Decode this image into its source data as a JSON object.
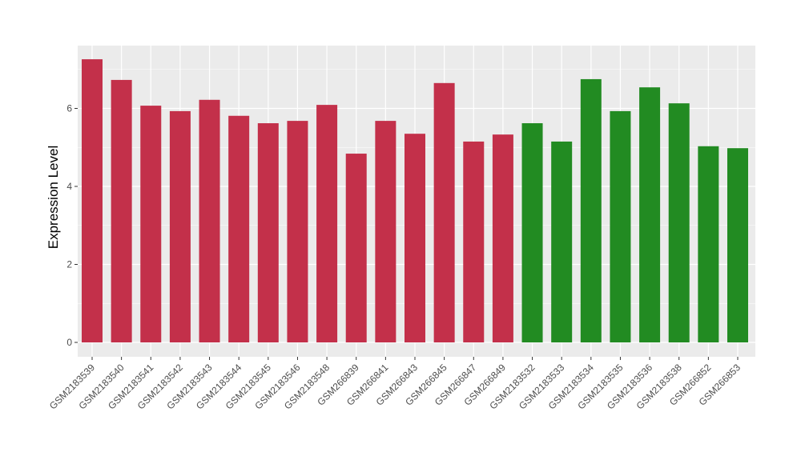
{
  "chart_data": {
    "type": "bar",
    "title": "",
    "xlabel": "",
    "ylabel": "Expression Level",
    "ylim": [
      -0.3,
      7.7
    ],
    "yticks": [
      0,
      2,
      4,
      6
    ],
    "grid": true,
    "categories": [
      "GSM2183539",
      "GSM2183540",
      "GSM2183541",
      "GSM2183542",
      "GSM2183543",
      "GSM2183544",
      "GSM2183545",
      "GSM2183546",
      "GSM2183548",
      "GSM266839",
      "GSM266841",
      "GSM266843",
      "GSM266845",
      "GSM266847",
      "GSM266849",
      "GSM2183532",
      "GSM2183533",
      "GSM2183534",
      "GSM2183535",
      "GSM2183536",
      "GSM2183538",
      "GSM266852",
      "GSM266853"
    ],
    "values": [
      7.26,
      6.73,
      6.07,
      5.93,
      6.22,
      5.81,
      5.62,
      5.68,
      6.09,
      4.84,
      5.68,
      5.35,
      6.65,
      5.15,
      5.33,
      5.62,
      5.15,
      6.75,
      5.93,
      6.54,
      6.13,
      5.03,
      4.98
    ],
    "groups": [
      "red",
      "red",
      "red",
      "red",
      "red",
      "red",
      "red",
      "red",
      "red",
      "red",
      "red",
      "red",
      "red",
      "red",
      "red",
      "green",
      "green",
      "green",
      "green",
      "green",
      "green",
      "green",
      "green"
    ],
    "colors": {
      "red": "#C3304A",
      "green": "#228B22"
    }
  }
}
